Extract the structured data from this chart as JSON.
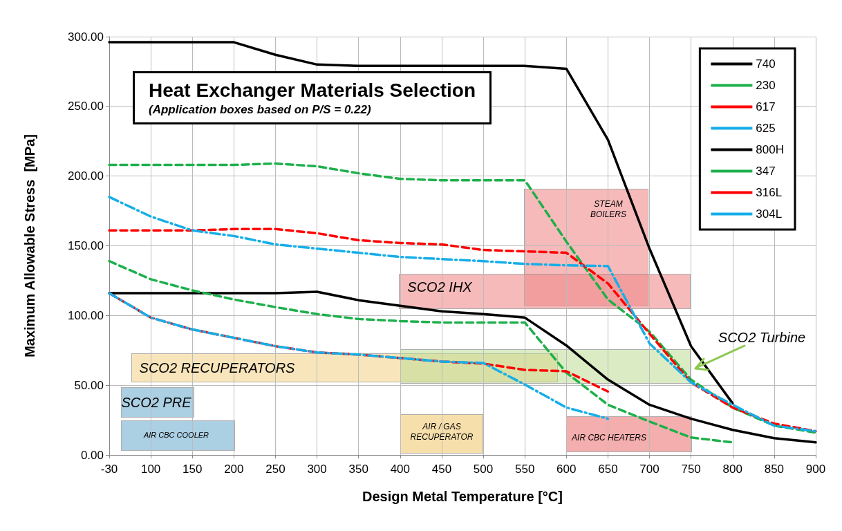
{
  "chart_data": {
    "type": "line",
    "title": "Heat Exchanger Materials Selection",
    "subtitle": "(Application boxes based on P/S = 0.22)",
    "xlabel": "Design Metal Temperature [°C]",
    "ylabel": "Maximum Allowable Stress  [MPa]",
    "categories": [
      "-30",
      "100",
      "150",
      "200",
      "250",
      "300",
      "350",
      "400",
      "450",
      "500",
      "550",
      "600",
      "650",
      "700",
      "750",
      "800",
      "850",
      "900"
    ],
    "ylim": [
      0,
      300
    ],
    "yticks": [
      {
        "value": 0,
        "label": "0.00"
      },
      {
        "value": 50,
        "label": "50.00"
      },
      {
        "value": 100,
        "label": "100.00"
      },
      {
        "value": 150,
        "label": "150.00"
      },
      {
        "value": 200,
        "label": "200.00"
      },
      {
        "value": 250,
        "label": "250.00"
      },
      {
        "value": 300,
        "label": "300.00"
      }
    ],
    "grid": true,
    "legend": "top right",
    "marker": "none",
    "series": [
      {
        "name": "740",
        "color": "#000000",
        "line_style": "solid",
        "values": [
          296,
          296,
          296,
          296,
          287,
          280,
          279,
          279,
          279,
          279,
          279,
          277,
          226,
          148,
          78,
          37,
          null,
          null
        ]
      },
      {
        "name": "230",
        "color": "#1db04b",
        "line_style": "dashed",
        "values": [
          208,
          208,
          208,
          208,
          209,
          207,
          202,
          198,
          197,
          197,
          197,
          153,
          111.5,
          88.5,
          54,
          34,
          21,
          16
        ]
      },
      {
        "name": "617",
        "color": "#ff0000",
        "line_style": "dashed",
        "values": [
          161,
          161,
          161,
          162,
          162,
          159,
          154,
          152,
          151,
          147,
          146,
          145,
          123,
          87,
          52,
          34,
          22.5,
          17
        ]
      },
      {
        "name": "625",
        "color": "#15aee8",
        "line_style": "dashdot",
        "values": [
          185,
          171,
          161,
          157,
          151,
          148,
          145,
          142,
          140.5,
          139,
          137,
          136,
          135.5,
          80,
          52,
          36,
          21,
          17
        ]
      },
      {
        "name": "800H",
        "color": "#000000",
        "line_style": "solid",
        "values": [
          116,
          116,
          116,
          116,
          116,
          117,
          111,
          107,
          103,
          101,
          98.5,
          78.5,
          54,
          36,
          26,
          18,
          12,
          9
        ]
      },
      {
        "name": "347",
        "color": "#1db04b",
        "line_style": "dashed",
        "values": [
          139,
          126,
          118,
          111.5,
          106,
          101,
          97.5,
          96,
          95,
          95,
          95,
          59,
          36,
          24,
          12.5,
          9,
          null,
          null
        ]
      },
      {
        "name": "316L",
        "color": "#ff0000",
        "line_style": "dashed",
        "values": [
          116,
          98.5,
          90,
          84,
          78,
          73.5,
          72,
          69.5,
          67,
          65.5,
          61,
          60,
          45.5,
          null,
          null,
          null,
          null,
          null
        ]
      },
      {
        "name": "304L",
        "color": "#15aee8",
        "line_style": "dashdot",
        "values": [
          116,
          98.5,
          90,
          84,
          78,
          73.5,
          72,
          69.5,
          67,
          66,
          50.5,
          34,
          26,
          null,
          null,
          null,
          null,
          null
        ]
      }
    ],
    "annotations": [
      "STEAM\nBOILERS",
      "SCO2 IHX",
      "SCO2 RECUPERATORS",
      "SCO2 PRE",
      "AIR CBC COOLER",
      "AIR / GAS\nRECUPERATOR",
      "AIR CBC HEATERS",
      "SCO2 Turbine"
    ]
  }
}
